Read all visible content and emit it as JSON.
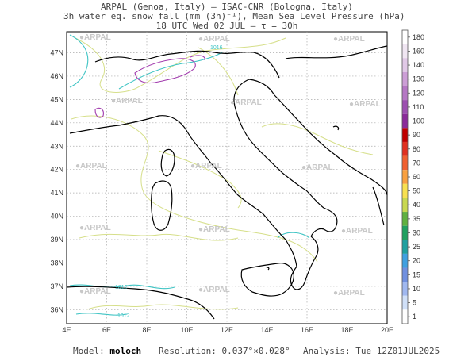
{
  "title": {
    "line1": "ARPAL (Genoa, Italy)  —  ISAC-CNR (Bologna, Italy)",
    "line2": "3h water eq. snow fall (mm (3h)⁻¹), Mean Sea Level Pressure (hPa)",
    "line3": "18 UTC Wed 02 JUL  —  τ = 30h"
  },
  "axes": {
    "lon_labels": [
      "4E",
      "6E",
      "8E",
      "10E",
      "12E",
      "14E",
      "16E",
      "18E",
      "20E"
    ],
    "lat_labels": [
      "47N",
      "46N",
      "45N",
      "44N",
      "43N",
      "42N",
      "41N",
      "40N",
      "39N",
      "38N",
      "37N",
      "36N"
    ]
  },
  "colorbar": {
    "levels": [
      "180",
      "160",
      "140",
      "130",
      "120",
      "110",
      "100",
      "90",
      "80",
      "70",
      "60",
      "50",
      "40",
      "35",
      "30",
      "25",
      "20",
      "15",
      "10",
      "5",
      "1"
    ],
    "colors": [
      "#ffffff",
      "#f0e6f2",
      "#e0c8e6",
      "#cc9ed6",
      "#b577c4",
      "#9c4fb0",
      "#8a2a9a",
      "#c00000",
      "#e03020",
      "#f06030",
      "#f8a040",
      "#f8e050",
      "#c8d850",
      "#60b040",
      "#20a060",
      "#20a0a0",
      "#40a0e0",
      "#7090e0",
      "#a0b8f0",
      "#d0e0f8",
      "#ffffff"
    ]
  },
  "watermark": "ARPAL",
  "isobar_labels": [
    "1012",
    "1012",
    "1016"
  ],
  "footer": {
    "model_label": "Model:",
    "model_value": "moloch",
    "resolution_label": "Resolution:",
    "resolution_value": "0.037°×0.028°",
    "analysis_label": "Analysis:",
    "analysis_value": "Tue 12Z01JUL2025"
  }
}
